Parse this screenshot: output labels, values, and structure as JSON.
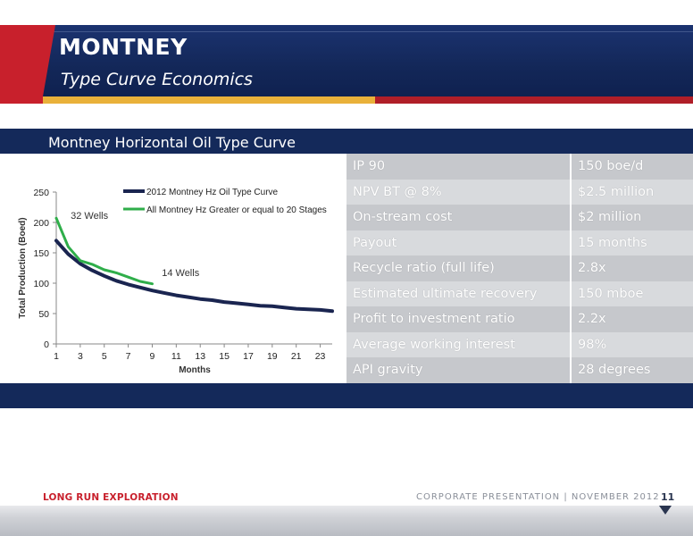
{
  "header": {
    "title": "MONTNEY",
    "subtitle": "Type Curve Economics"
  },
  "panel": {
    "title": "Montney Horizontal Oil Type Curve"
  },
  "table": {
    "rows": [
      {
        "label": "IP 90",
        "value": "150 boe/d"
      },
      {
        "label": "NPV BT @ 8%",
        "value": "$2.5 million"
      },
      {
        "label": "On-stream cost",
        "value": "$2 million"
      },
      {
        "label": "Payout",
        "value": "15 months"
      },
      {
        "label": "Recycle ratio (full life)",
        "value": "2.8x"
      },
      {
        "label": "Estimated ultimate recovery",
        "value": "150 mboe"
      },
      {
        "label": "Profit to investment ratio",
        "value": "2.2x"
      },
      {
        "label": "Average working interest",
        "value": "98%"
      },
      {
        "label": "API gravity",
        "value": "28 degrees"
      }
    ]
  },
  "chart_data": {
    "type": "line",
    "xlabel": "Months",
    "ylabel": "Total Production (Boed)",
    "xlim": [
      1,
      24
    ],
    "ylim": [
      0,
      250
    ],
    "xticks": [
      "1",
      "3",
      "5",
      "7",
      "9",
      "11",
      "13",
      "15",
      "17",
      "19",
      "21",
      "23"
    ],
    "yticks": [
      "0",
      "50",
      "100",
      "150",
      "200",
      "250"
    ],
    "legend_position": "top-right",
    "annotations": [
      {
        "text": "32 Wells",
        "x": 2.2,
        "y": 206
      },
      {
        "text": "14 Wells",
        "x": 9.8,
        "y": 112
      }
    ],
    "series": [
      {
        "name": "2012 Montney Hz Oil Type Curve",
        "color": "#1a2550",
        "x": [
          1,
          2,
          3,
          4,
          5,
          6,
          7,
          8,
          9,
          10,
          11,
          12,
          13,
          14,
          15,
          16,
          17,
          18,
          19,
          20,
          21,
          22,
          23,
          24
        ],
        "values": [
          170,
          148,
          132,
          121,
          112,
          104,
          98,
          93,
          88,
          84,
          80,
          77,
          74,
          72,
          69,
          67,
          65,
          63,
          62,
          60,
          58,
          57,
          56,
          54
        ]
      },
      {
        "name": "All Montney Hz Greater or equal to 20 Stages",
        "color": "#2fae4a",
        "x": [
          1,
          2,
          3,
          4,
          5,
          6,
          7,
          8,
          9
        ],
        "values": [
          207,
          160,
          137,
          131,
          122,
          117,
          110,
          103,
          99
        ]
      }
    ]
  },
  "footer": {
    "company": "LONG RUN EXPLORATION",
    "presentation": "CORPORATE PRESENTATION | NOVEMBER 2012",
    "page": "11"
  }
}
